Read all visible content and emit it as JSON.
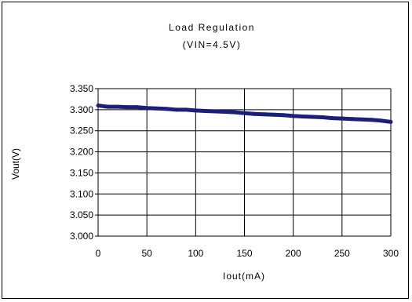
{
  "chart_data": {
    "type": "line",
    "title": "Load Regulation",
    "subtitle": "(VIN=4.5V)",
    "xlabel": "Iout(mA)",
    "ylabel": "Vout(V)",
    "xlim": [
      0,
      300
    ],
    "ylim": [
      3.0,
      3.35
    ],
    "xticks": [
      "0",
      "50",
      "100",
      "150",
      "200",
      "250",
      "300"
    ],
    "yticks": [
      "3.000",
      "3.050",
      "3.100",
      "3.150",
      "3.200",
      "3.250",
      "3.300",
      "3.350"
    ],
    "grid": true,
    "legend": "none",
    "colors": {
      "line": "#1a1f7a",
      "grid": "#000000"
    },
    "series": [
      {
        "x": [
          0,
          10,
          20,
          30,
          40,
          50,
          60,
          70,
          80,
          90,
          100,
          110,
          120,
          130,
          140,
          150,
          160,
          170,
          180,
          190,
          200,
          210,
          220,
          230,
          240,
          250,
          260,
          270,
          280,
          290,
          300
        ],
        "y": [
          3.31,
          3.307,
          3.307,
          3.306,
          3.306,
          3.304,
          3.303,
          3.302,
          3.3,
          3.3,
          3.298,
          3.297,
          3.296,
          3.295,
          3.294,
          3.292,
          3.29,
          3.289,
          3.288,
          3.287,
          3.285,
          3.284,
          3.283,
          3.282,
          3.28,
          3.279,
          3.278,
          3.277,
          3.276,
          3.274,
          3.271
        ]
      }
    ]
  }
}
